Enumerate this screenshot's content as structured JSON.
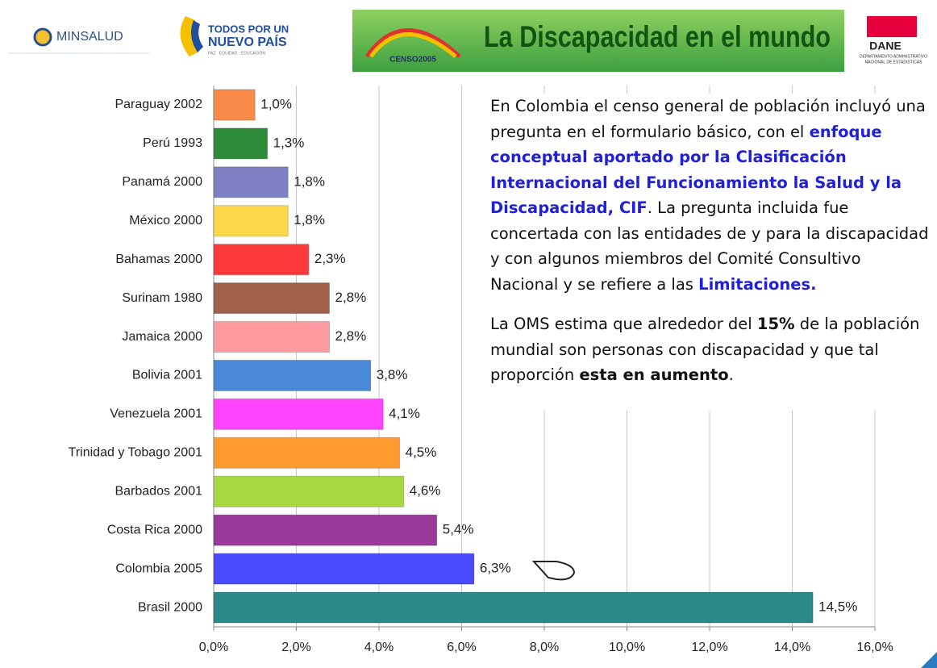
{
  "header": {
    "minsalud": "MINSALUD",
    "gov_line1": "TODOS POR UN",
    "gov_line2": "NUEVO PAÍS",
    "gov_line3": "PAZ · EQUIDAD · EDUCACIÓN",
    "censo": "CENSO2005",
    "title": "La Discapacidad en el mundo",
    "dane": "DANE",
    "dane_sub1": "DEPARTAMENTO ADMINISTRATIVO",
    "dane_sub2": "NACIONAL DE ESTADISTICAS"
  },
  "text": {
    "paragraphs": [
      [
        {
          "text": "En Colombia el censo general de población incluyó una pregunta en el formulario básico, con el "
        },
        {
          "text": "enfoque conceptual aportado por la Clasificación Internacional del Funcionamiento la Salud y la Discapacidad, CIF",
          "bold": true,
          "color": "#2020d8"
        },
        {
          "text": ". La pregunta incluida fue concertada con las entidades de y para la discapacidad y con algunos miembros del Comité Consultivo Nacional y se refiere a las "
        },
        {
          "text": "Limitaciones.",
          "bold": true,
          "color": "#2020d8"
        }
      ],
      [
        {
          "text": "La OMS estima que alrededor del "
        },
        {
          "text": "15%",
          "bold": true
        },
        {
          "text": " de la población mundial son personas con discapacidad y que tal proporción "
        },
        {
          "text": "esta en aumento",
          "bold": true
        },
        {
          "text": "."
        }
      ]
    ]
  },
  "chart_data": {
    "type": "barh",
    "categories": [
      "Paraguay 2002",
      "Perú 1993",
      "Panamá 2000",
      "México 2000",
      "Bahamas 2000",
      "Surinam 1980",
      "Jamaica 2000",
      "Bolivia 2001",
      "Venezuela 2001",
      "Trinidad y Tobago 2001",
      "Barbados 2001",
      "Costa Rica 2000",
      "Colombia 2005",
      "Brasil 2000"
    ],
    "values": [
      1.0,
      1.3,
      1.8,
      1.8,
      2.3,
      2.8,
      2.8,
      3.8,
      4.1,
      4.5,
      4.6,
      5.4,
      6.3,
      14.5
    ],
    "value_labels": [
      "1,0%",
      "1,3%",
      "1,8%",
      "1,8%",
      "2,3%",
      "2,8%",
      "2,8%",
      "3,8%",
      "4,1%",
      "4,5%",
      "4,6%",
      "5,4%",
      "6,3%",
      "14,5%"
    ],
    "colors": [
      "#f98a4a",
      "#2e8b3a",
      "#8080c4",
      "#ffd84a",
      "#ff3a3a",
      "#a0604a",
      "#ff9aa0",
      "#4a88d8",
      "#ff44ff",
      "#ff9a30",
      "#a8d840",
      "#9a3a9a",
      "#4a4aff",
      "#2a8a8a"
    ],
    "xlim": [
      0,
      16
    ],
    "xticks": [
      {
        "value": 0,
        "label": "0,0%"
      },
      {
        "value": 2,
        "label": "2,0%"
      },
      {
        "value": 4,
        "label": "4,0%"
      },
      {
        "value": 6,
        "label": "6,0%"
      },
      {
        "value": 8,
        "label": "8,0%"
      },
      {
        "value": 10,
        "label": "10,0%"
      },
      {
        "value": 12,
        "label": "12,0%"
      },
      {
        "value": 14,
        "label": "14,0%"
      },
      {
        "value": 16,
        "label": "16,0%"
      }
    ],
    "grid": true
  }
}
